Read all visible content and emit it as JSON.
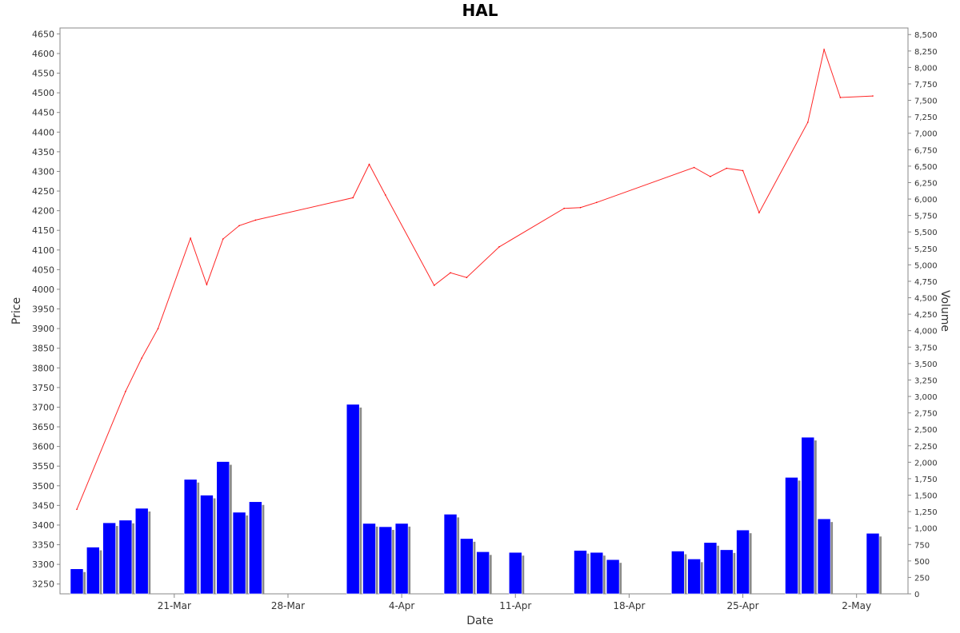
{
  "chart_data": {
    "type": "line+bar",
    "title": "HAL",
    "xlabel": "Date",
    "ylabel_left": "Price",
    "ylabel_right": "Volume",
    "x_ticks": [
      "21-Mar",
      "28-Mar",
      "4-Apr",
      "11-Apr",
      "18-Apr",
      "25-Apr",
      "2-May"
    ],
    "left_axis": {
      "min": 3225,
      "max": 4665,
      "ticks": [
        "3250",
        "3300",
        "3350",
        "3400",
        "3450",
        "3500",
        "3550",
        "3600",
        "3650",
        "3700",
        "3750",
        "3800",
        "3850",
        "3900",
        "3950",
        "4000",
        "4050",
        "4100",
        "4150",
        "4200",
        "4250",
        "4300",
        "4350",
        "4400",
        "4450",
        "4500",
        "4550",
        "4600",
        "4650"
      ]
    },
    "right_axis": {
      "min": 0,
      "max": 8600,
      "ticks": [
        "0",
        "250",
        "500",
        "750",
        "1,000",
        "1,250",
        "1,500",
        "1,750",
        "2,000",
        "2,250",
        "2,500",
        "2,750",
        "3,000",
        "3,250",
        "3,500",
        "3,750",
        "4,000",
        "4,250",
        "4,500",
        "4,750",
        "5,000",
        "5,250",
        "5,500",
        "5,750",
        "6,000",
        "6,250",
        "6,500",
        "6,750",
        "7,000",
        "7,250",
        "7,500",
        "7,750",
        "8,000",
        "8,250",
        "8,500"
      ]
    },
    "date_range": [
      "2024-03-15",
      "2024-05-03"
    ],
    "series": [
      {
        "kind": "line",
        "axis": "left",
        "color": "#ff0000",
        "points": [
          {
            "date": "2024-03-15",
            "value": 3440
          },
          {
            "date": "2024-03-18",
            "value": 3740
          },
          {
            "date": "2024-03-19",
            "value": 3825
          },
          {
            "date": "2024-03-20",
            "value": 3900
          },
          {
            "date": "2024-03-22",
            "value": 4130
          },
          {
            "date": "2024-03-23",
            "value": 4012
          },
          {
            "date": "2024-03-24",
            "value": 4128
          },
          {
            "date": "2024-03-25",
            "value": 4162
          },
          {
            "date": "2024-03-26",
            "value": 4176
          },
          {
            "date": "2024-04-01",
            "value": 4233
          },
          {
            "date": "2024-04-02",
            "value": 4318
          },
          {
            "date": "2024-04-03",
            "value": 4240
          },
          {
            "date": "2024-04-06",
            "value": 4010
          },
          {
            "date": "2024-04-07",
            "value": 4042
          },
          {
            "date": "2024-04-08",
            "value": 4030
          },
          {
            "date": "2024-04-10",
            "value": 4108
          },
          {
            "date": "2024-04-14",
            "value": 4206
          },
          {
            "date": "2024-04-15",
            "value": 4208
          },
          {
            "date": "2024-04-16",
            "value": 4221
          },
          {
            "date": "2024-04-22",
            "value": 4310
          },
          {
            "date": "2024-04-23",
            "value": 4287
          },
          {
            "date": "2024-04-24",
            "value": 4308
          },
          {
            "date": "2024-04-25",
            "value": 4302
          },
          {
            "date": "2024-04-26",
            "value": 4195
          },
          {
            "date": "2024-04-29",
            "value": 4425
          },
          {
            "date": "2024-04-30",
            "value": 4610
          },
          {
            "date": "2024-05-01",
            "value": 4488
          },
          {
            "date": "2024-05-03",
            "value": 4492
          }
        ]
      },
      {
        "kind": "bar",
        "axis": "right",
        "color": "#0000ff",
        "points": [
          {
            "date": "2024-03-15",
            "value": 380
          },
          {
            "date": "2024-03-16",
            "value": 710
          },
          {
            "date": "2024-03-17",
            "value": 1080
          },
          {
            "date": "2024-03-18",
            "value": 1120
          },
          {
            "date": "2024-03-19",
            "value": 1300
          },
          {
            "date": "2024-03-22",
            "value": 1740
          },
          {
            "date": "2024-03-23",
            "value": 1500
          },
          {
            "date": "2024-03-24",
            "value": 2010
          },
          {
            "date": "2024-03-25",
            "value": 1240
          },
          {
            "date": "2024-03-26",
            "value": 1400
          },
          {
            "date": "2024-04-01",
            "value": 2880
          },
          {
            "date": "2024-04-02",
            "value": 1070
          },
          {
            "date": "2024-04-03",
            "value": 1020
          },
          {
            "date": "2024-04-04",
            "value": 1070
          },
          {
            "date": "2024-04-07",
            "value": 1210
          },
          {
            "date": "2024-04-08",
            "value": 840
          },
          {
            "date": "2024-04-09",
            "value": 640
          },
          {
            "date": "2024-04-11",
            "value": 630
          },
          {
            "date": "2024-04-15",
            "value": 660
          },
          {
            "date": "2024-04-16",
            "value": 630
          },
          {
            "date": "2024-04-17",
            "value": 520
          },
          {
            "date": "2024-04-21",
            "value": 650
          },
          {
            "date": "2024-04-22",
            "value": 530
          },
          {
            "date": "2024-04-23",
            "value": 780
          },
          {
            "date": "2024-04-24",
            "value": 670
          },
          {
            "date": "2024-04-25",
            "value": 970
          },
          {
            "date": "2024-04-28",
            "value": 1770
          },
          {
            "date": "2024-04-29",
            "value": 2380
          },
          {
            "date": "2024-04-30",
            "value": 1140
          },
          {
            "date": "2024-05-03",
            "value": 920
          }
        ]
      }
    ],
    "grid": false,
    "legend": "none"
  }
}
